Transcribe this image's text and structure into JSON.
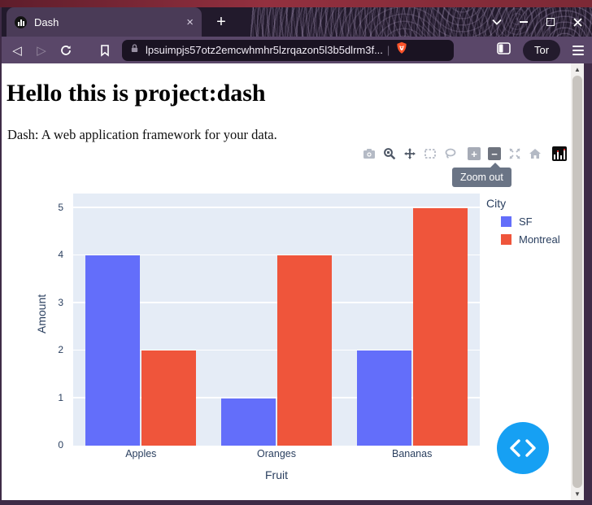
{
  "window_controls": {
    "tab_search_icon": "chevron-down",
    "minimize_icon": "minimize",
    "maximize_icon": "maximize",
    "close_icon": "close"
  },
  "browser": {
    "tab_title": "Dash",
    "tab_close_glyph": "×",
    "new_tab_glyph": "+",
    "back_glyph": "◁",
    "forward_glyph": "▷",
    "url": "lpsuimpjs57otz2emcwhmhr5lzrqazon5l3b5dlrm3f...",
    "url_divider": "|",
    "tor_label": "Tor",
    "icons": [
      "back-icon",
      "forward-icon",
      "reload-icon",
      "bookmark-icon",
      "lock-icon",
      "brave-shield-icon",
      "sidebar-icon",
      "tor-button",
      "menu-icon"
    ]
  },
  "scrollbar": {
    "up_glyph": "▲",
    "down_glyph": "▼"
  },
  "page": {
    "heading": "Hello this is project:dash",
    "subtitle": "Dash: A web application framework for your data."
  },
  "modebar": {
    "tooltip": "Zoom out",
    "zoom_in_glyph": "+",
    "zoom_out_glyph": "−",
    "icons": [
      "camera-icon",
      "zoom-icon",
      "pan-icon",
      "box-select-icon",
      "lasso-icon",
      "zoom-in-icon",
      "zoom-out-icon",
      "autoscale-icon",
      "reset-axes-home-icon",
      "plotly-logo-icon"
    ]
  },
  "chart_data": {
    "type": "bar",
    "title": "",
    "categories": [
      "Apples",
      "Oranges",
      "Bananas"
    ],
    "series": [
      {
        "name": "SF",
        "color": "#636EFA",
        "values": [
          4,
          1,
          2
        ]
      },
      {
        "name": "Montreal",
        "color": "#EF553B",
        "values": [
          2,
          4,
          5
        ]
      }
    ],
    "xlabel": "Fruit",
    "ylabel": "Amount",
    "ylim": [
      0,
      5.3
    ],
    "yticks": [
      0,
      1,
      2,
      3,
      4,
      5
    ],
    "legend_title": "City",
    "legend_position": "top-right-outside",
    "grid": true,
    "plot_bgcolor": "#E5ECF6",
    "gridcolor": "#FFFFFF",
    "text_color": "#2a3f5f",
    "barmode": "group"
  },
  "colors": {
    "accent_blue_debug": "#16a0f3",
    "chrome_purple": "#5a4769",
    "tabbar_dark": "#221a2c",
    "top_strip_red": "#93303f",
    "urlbar_dark": "#1a1322",
    "tooltip_bg": "#6a7485"
  }
}
